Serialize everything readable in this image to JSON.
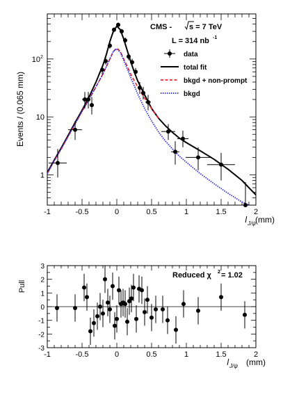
{
  "chart_data": [
    {
      "type": "scatter",
      "title": "CMS - √s = 7 TeV",
      "annotations": {
        "experiment": "CMS - ",
        "energy_prefix": "s = 7 TeV",
        "lumi": "L = 314 nb",
        "lumi_sup": "-1"
      },
      "xlabel": "l",
      "xlabel_sub": "J/ψ",
      "xlabel_unit": "(mm)",
      "ylabel": "Events / (0.065 mm)",
      "xlim": [
        -1,
        2
      ],
      "ylim_log": [
        0.3,
        600
      ],
      "yscale": "log",
      "x_ticks": [
        {
          "v": -1,
          "label": "-1"
        },
        {
          "v": -0.5,
          "label": "-0.5"
        },
        {
          "v": 0,
          "label": "0"
        },
        {
          "v": 0.5,
          "label": "0.5"
        },
        {
          "v": 1,
          "label": "1"
        },
        {
          "v": 1.5,
          "label": "1.5"
        },
        {
          "v": 2,
          "label": "2"
        }
      ],
      "y_ticks": [
        {
          "v": 1,
          "label": "1"
        },
        {
          "v": 10,
          "label": "10"
        },
        {
          "v": 100,
          "label": "10",
          "sup": "2"
        }
      ],
      "legend": {
        "placement": "top-right",
        "entries": [
          {
            "name": "data",
            "style": "marker"
          },
          {
            "name": "total fit",
            "style": "line",
            "color": "#000000"
          },
          {
            "name": "bkgd + non-prompt",
            "style": "dash",
            "color": "#e8202a"
          },
          {
            "name": "bkgd",
            "style": "dot",
            "color": "#2b2bd6"
          }
        ]
      },
      "series": [
        {
          "name": "data",
          "points": [
            {
              "x": -0.85,
              "y": 1.6,
              "xerr": 0.13,
              "ylo": 0.9,
              "yhi": 2.8
            },
            {
              "x": -0.6,
              "y": 6.0,
              "xerr": 0.1,
              "ylo": 4.0,
              "yhi": 8.5
            },
            {
              "x": -0.46,
              "y": 20,
              "xerr": 0.04,
              "ylo": 14,
              "yhi": 27
            },
            {
              "x": -0.41,
              "y": 20,
              "xerr": 0.03,
              "ylo": 14,
              "yhi": 27
            },
            {
              "x": -0.36,
              "y": 16,
              "xerr": 0.03,
              "ylo": 11,
              "yhi": 22
            },
            {
              "x": -0.21,
              "y": 65,
              "xerr": 0.03,
              "ylo": 55,
              "yhi": 76
            },
            {
              "x": -0.16,
              "y": 92,
              "xerr": 0.03,
              "ylo": 80,
              "yhi": 105
            },
            {
              "x": -0.1,
              "y": 170,
              "xerr": 0.03,
              "ylo": 150,
              "yhi": 190
            },
            {
              "x": -0.04,
              "y": 320,
              "xerr": 0.03,
              "ylo": 290,
              "yhi": 350
            },
            {
              "x": 0.02,
              "y": 390,
              "xerr": 0.03,
              "ylo": 355,
              "yhi": 425
            },
            {
              "x": 0.07,
              "y": 300,
              "xerr": 0.03,
              "ylo": 270,
              "yhi": 330
            },
            {
              "x": 0.12,
              "y": 210,
              "xerr": 0.03,
              "ylo": 185,
              "yhi": 235
            },
            {
              "x": 0.17,
              "y": 110,
              "xerr": 0.03,
              "ylo": 95,
              "yhi": 125
            },
            {
              "x": 0.22,
              "y": 88,
              "xerr": 0.03,
              "ylo": 75,
              "yhi": 101
            },
            {
              "x": 0.27,
              "y": 60,
              "xerr": 0.03,
              "ylo": 50,
              "yhi": 70
            },
            {
              "x": 0.33,
              "y": 32,
              "xerr": 0.03,
              "ylo": 25,
              "yhi": 40
            },
            {
              "x": 0.38,
              "y": 26,
              "xerr": 0.03,
              "ylo": 20,
              "yhi": 33
            },
            {
              "x": 0.45,
              "y": 18,
              "xerr": 0.04,
              "ylo": 13,
              "yhi": 24
            },
            {
              "x": 0.74,
              "y": 5.6,
              "xerr": 0.1,
              "ylo": 4.0,
              "yhi": 7.5
            },
            {
              "x": 0.84,
              "y": 2.5,
              "xerr": 0.06,
              "ylo": 1.5,
              "yhi": 3.8
            },
            {
              "x": 0.95,
              "y": 4.2,
              "xerr": 0.08,
              "ylo": 3.0,
              "yhi": 5.8
            },
            {
              "x": 1.17,
              "y": 2.0,
              "xerr": 0.18,
              "ylo": 1.2,
              "yhi": 3.0
            },
            {
              "x": 1.5,
              "y": 1.5,
              "xerr": 0.2,
              "ylo": 0.8,
              "yhi": 2.4
            },
            {
              "x": 1.85,
              "y": 0.3,
              "xerr": 0.08,
              "ylo": 0.3,
              "yhi": 0.75
            }
          ]
        },
        {
          "name": "total fit",
          "x": [
            -1,
            -0.9,
            -0.8,
            -0.7,
            -0.6,
            -0.5,
            -0.4,
            -0.3,
            -0.2,
            -0.15,
            -0.1,
            -0.05,
            0,
            0.05,
            0.1,
            0.15,
            0.2,
            0.25,
            0.3,
            0.4,
            0.5,
            0.6,
            0.7,
            0.8,
            0.9,
            1.0,
            1.2,
            1.4,
            1.6,
            1.8,
            1.9,
            2.0
          ],
          "y": [
            1.1,
            1.8,
            2.9,
            4.8,
            8.0,
            13,
            22,
            40,
            78,
            120,
            200,
            300,
            370,
            320,
            220,
            140,
            90,
            60,
            42,
            24,
            14,
            9.5,
            7,
            5.4,
            4.3,
            3.6,
            2.6,
            1.85,
            1.25,
            0.8,
            0.6,
            0.45
          ]
        },
        {
          "name": "bkgd + non-prompt",
          "x": [
            -1,
            -0.9,
            -0.8,
            -0.7,
            -0.6,
            -0.5,
            -0.4,
            -0.3,
            -0.2,
            -0.1,
            -0.05,
            0,
            0.05,
            0.1,
            0.15,
            0.2,
            0.3,
            0.4,
            0.5,
            0.6
          ],
          "y": [
            1.05,
            1.75,
            2.8,
            4.6,
            7.6,
            12.5,
            20,
            33,
            55,
            100,
            135,
            155,
            135,
            100,
            75,
            55,
            33,
            21,
            14,
            9.5
          ]
        },
        {
          "name": "bkgd",
          "x": [
            -1,
            -0.9,
            -0.8,
            -0.7,
            -0.6,
            -0.5,
            -0.4,
            -0.3,
            -0.2,
            -0.1,
            -0.05,
            0,
            0.05,
            0.1,
            0.2,
            0.3,
            0.4,
            0.5,
            0.6,
            0.7,
            0.8,
            0.9,
            1.0,
            1.2,
            1.4,
            1.6,
            1.8,
            1.9
          ],
          "y": [
            1.05,
            1.75,
            2.8,
            4.6,
            7.6,
            12.5,
            20,
            33,
            55,
            100,
            135,
            150,
            130,
            95,
            48,
            25,
            14,
            8.5,
            5.5,
            3.8,
            2.8,
            2.1,
            1.65,
            1.05,
            0.7,
            0.48,
            0.34,
            0.3
          ]
        }
      ]
    },
    {
      "type": "scatter",
      "xlabel": "l",
      "xlabel_sub": "J/ψ",
      "xlabel_unit": "(mm)",
      "ylabel": "Pull",
      "annotation": "Reduced χ",
      "annotation_sup": "2",
      "annotation_value": " = 1.02",
      "xlim": [
        -1,
        2
      ],
      "ylim": [
        -3,
        3
      ],
      "x_ticks": [
        {
          "v": -1,
          "label": "-1"
        },
        {
          "v": -0.5,
          "label": "-0.5"
        },
        {
          "v": 0,
          "label": "0"
        },
        {
          "v": 0.5,
          "label": "0.5"
        },
        {
          "v": 1,
          "label": "1"
        },
        {
          "v": 1.5,
          "label": "1.5"
        },
        {
          "v": 2,
          "label": "2"
        }
      ],
      "y_ticks": [
        {
          "v": -3,
          "label": "-3"
        },
        {
          "v": -2,
          "label": "-2"
        },
        {
          "v": -1,
          "label": "-1"
        },
        {
          "v": 0,
          "label": "0"
        },
        {
          "v": 1,
          "label": "1"
        },
        {
          "v": 2,
          "label": "2"
        },
        {
          "v": 3,
          "label": "3"
        }
      ],
      "series": [
        {
          "name": "pull",
          "points": [
            {
              "x": -0.86,
              "y": -0.1
            },
            {
              "x": -0.6,
              "y": -0.1
            },
            {
              "x": -0.47,
              "y": 1.4
            },
            {
              "x": -0.43,
              "y": 0.7
            },
            {
              "x": -0.38,
              "y": -1.8
            },
            {
              "x": -0.33,
              "y": -1.2
            },
            {
              "x": -0.28,
              "y": -0.7
            },
            {
              "x": -0.24,
              "y": 0.0
            },
            {
              "x": -0.2,
              "y": -0.5
            },
            {
              "x": -0.17,
              "y": 2.0
            },
            {
              "x": -0.13,
              "y": 0.3
            },
            {
              "x": -0.1,
              "y": -0.2
            },
            {
              "x": -0.06,
              "y": 1.5
            },
            {
              "x": -0.03,
              "y": -1.4
            },
            {
              "x": 0.0,
              "y": -0.9
            },
            {
              "x": 0.03,
              "y": 1.2
            },
            {
              "x": 0.06,
              "y": 0.2
            },
            {
              "x": 0.09,
              "y": 0.3
            },
            {
              "x": 0.12,
              "y": 0.2
            },
            {
              "x": 0.15,
              "y": -1.1
            },
            {
              "x": 0.18,
              "y": 0.4
            },
            {
              "x": 0.21,
              "y": 0.6
            },
            {
              "x": 0.24,
              "y": 1.4
            },
            {
              "x": 0.28,
              "y": -0.9
            },
            {
              "x": 0.32,
              "y": 1.3
            },
            {
              "x": 0.36,
              "y": 1.2
            },
            {
              "x": 0.4,
              "y": -0.4
            },
            {
              "x": 0.44,
              "y": 0.5
            },
            {
              "x": 0.5,
              "y": -0.8
            },
            {
              "x": 0.56,
              "y": -0.2
            },
            {
              "x": 0.66,
              "y": -0.2
            },
            {
              "x": 0.73,
              "y": -1.0
            },
            {
              "x": 0.85,
              "y": -1.7
            },
            {
              "x": 0.96,
              "y": 0.2
            },
            {
              "x": 1.17,
              "y": -0.3
            },
            {
              "x": 1.5,
              "y": 0.7
            },
            {
              "x": 1.84,
              "y": -0.6
            }
          ]
        }
      ]
    }
  ]
}
